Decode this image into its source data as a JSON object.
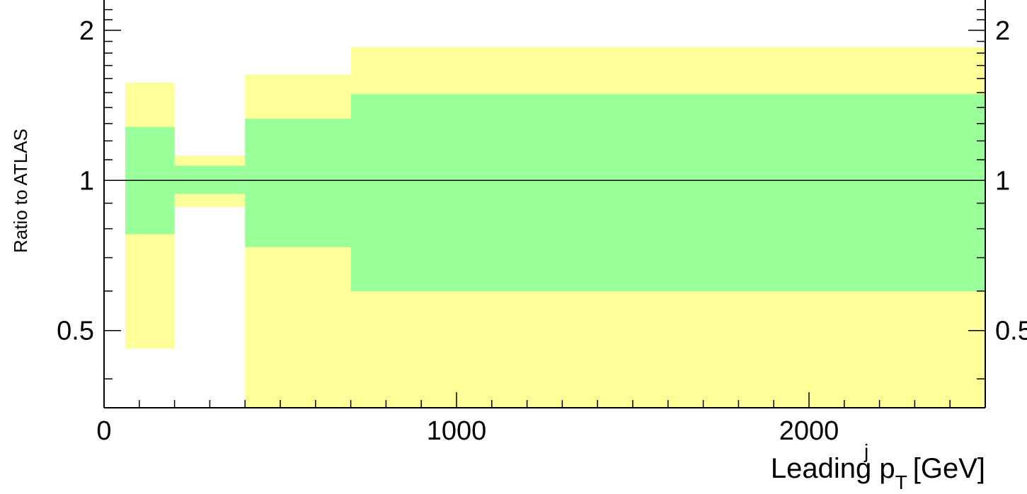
{
  "chart_data": {
    "type": "area",
    "xlabel": {
      "main": "Leading p",
      "sub": "T",
      "sup": "j",
      "unit": "[GeV]"
    },
    "ylabel": "Ratio to ATLAS",
    "xlim": [
      0,
      2500
    ],
    "ylim": [
      0.35,
      2.3
    ],
    "yscale": "log",
    "x_ticks": [
      0,
      1000,
      2000
    ],
    "x_tick_labels": [
      "0",
      "1000",
      "2000"
    ],
    "y_ticks": [
      0.5,
      1,
      2
    ],
    "y_tick_labels": [
      "0.5",
      "1",
      "2"
    ],
    "reference_line": 1,
    "grid": false,
    "series": [
      {
        "band": "outer",
        "color": "#ffff99",
        "bins": [
          {
            "x_low": 60,
            "x_high": 200,
            "low": 0.46,
            "high": 1.57
          },
          {
            "x_low": 200,
            "x_high": 400,
            "low": 0.885,
            "high": 1.12
          },
          {
            "x_low": 400,
            "x_high": 700,
            "low": 0.35,
            "high": 1.63
          },
          {
            "x_low": 700,
            "x_high": 2500,
            "low": 0.35,
            "high": 1.85
          }
        ]
      },
      {
        "band": "inner",
        "color": "#99ff99",
        "bins": [
          {
            "x_low": 60,
            "x_high": 200,
            "low": 0.78,
            "high": 1.28
          },
          {
            "x_low": 200,
            "x_high": 400,
            "low": 0.94,
            "high": 1.07
          },
          {
            "x_low": 400,
            "x_high": 700,
            "low": 0.735,
            "high": 1.33
          },
          {
            "x_low": 700,
            "x_high": 2500,
            "low": 0.6,
            "high": 1.49
          }
        ]
      }
    ]
  }
}
